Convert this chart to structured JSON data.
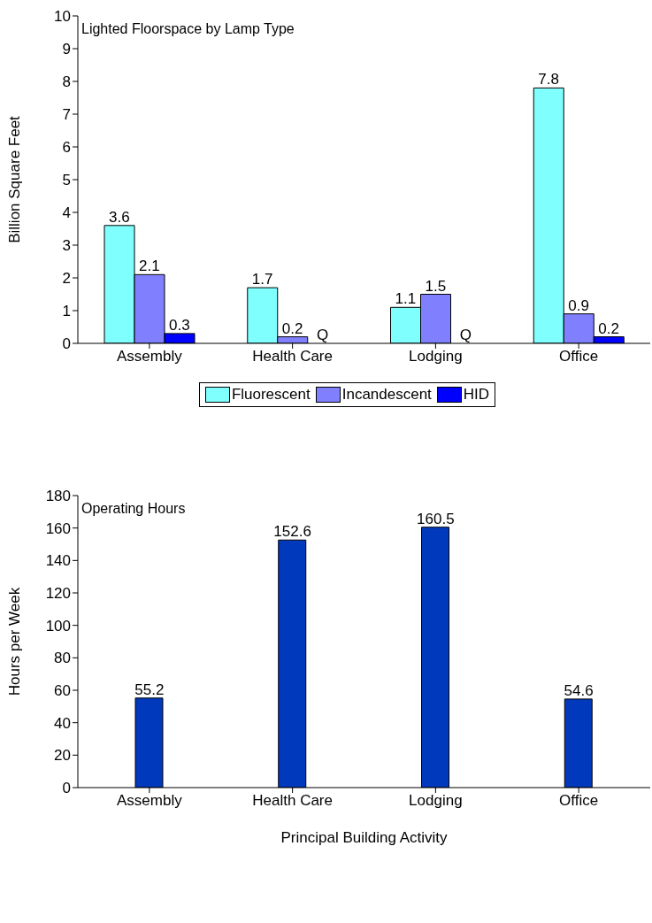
{
  "chart_data": [
    {
      "type": "bar",
      "title": "Lighted Floorspace by Lamp Type",
      "ylabel": "Billion Square Feet",
      "categories": [
        "Assembly",
        "Health Care",
        "Lodging",
        "Office"
      ],
      "series": [
        {
          "name": "Fluorescent",
          "color": "#80ffff",
          "values": [
            3.6,
            1.7,
            1.1,
            7.8
          ],
          "value_labels": [
            "3.6",
            "1.7",
            "1.1",
            "7.8"
          ]
        },
        {
          "name": "Incandescent",
          "color": "#8080ff",
          "values": [
            2.1,
            0.2,
            1.5,
            0.9
          ],
          "value_labels": [
            "2.1",
            "0.2",
            "1.5",
            "0.9"
          ]
        },
        {
          "name": "HID",
          "color": "#0000ff",
          "values": [
            0.3,
            null,
            null,
            0.2
          ],
          "value_labels": [
            "0.3",
            "Q",
            "Q",
            "0.2"
          ]
        }
      ],
      "ylim": [
        0,
        10
      ],
      "yticks": [
        0,
        1,
        2,
        3,
        4,
        5,
        6,
        7,
        8,
        9,
        10
      ],
      "grid": false,
      "legend": "bottom"
    },
    {
      "type": "bar",
      "title": "Operating Hours",
      "xlabel": "Principal Building Activity",
      "ylabel": "Hours per Week",
      "categories": [
        "Assembly",
        "Health Care",
        "Lodging",
        "Office"
      ],
      "values": [
        55.2,
        152.6,
        160.5,
        54.6
      ],
      "color": "#0039bb",
      "data_labels": true,
      "ylim": [
        0,
        180
      ],
      "yticks": [
        0,
        20,
        40,
        60,
        80,
        100,
        120,
        140,
        160,
        180
      ],
      "grid": false,
      "legend": false
    }
  ]
}
